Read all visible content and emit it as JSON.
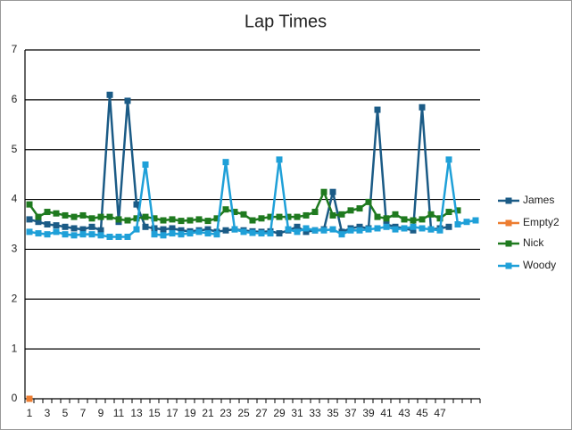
{
  "chart_data": {
    "type": "line",
    "title": "Lap Times",
    "categories": [
      "1",
      null,
      "3",
      null,
      "5",
      null,
      "7",
      null,
      "9",
      null,
      "11",
      null,
      "13",
      null,
      "15",
      null,
      "17",
      null,
      "19",
      null,
      "21",
      null,
      "23",
      null,
      "25",
      null,
      "27",
      null,
      "29",
      null,
      "31",
      null,
      "33",
      null,
      "35",
      null,
      "37",
      null,
      "39",
      null,
      "41",
      null,
      "43",
      null,
      "45",
      null,
      "47",
      null,
      null,
      null,
      null
    ],
    "series": [
      {
        "name": "James",
        "color": "#1b5b86",
        "values": [
          3.6,
          3.55,
          3.5,
          3.48,
          3.45,
          3.42,
          3.4,
          3.45,
          3.38,
          6.1,
          3.55,
          5.98,
          3.9,
          3.45,
          3.42,
          3.4,
          3.42,
          3.38,
          3.36,
          3.38,
          3.4,
          3.35,
          3.38,
          3.4,
          3.38,
          3.36,
          3.35,
          3.36,
          3.32,
          3.38,
          3.45,
          3.35,
          3.38,
          3.4,
          4.15,
          3.35,
          3.42,
          3.45,
          3.42,
          5.8,
          3.5,
          3.45,
          3.42,
          3.38,
          5.85,
          3.4,
          3.42,
          3.45,
          null,
          null,
          null
        ]
      },
      {
        "name": "Empty2",
        "color": "#ed7d31",
        "values": [
          0,
          null,
          null,
          null,
          null,
          null,
          null,
          null,
          null,
          null,
          null,
          null,
          null,
          null,
          null,
          null,
          null,
          null,
          null,
          null,
          null,
          null,
          null,
          null,
          null,
          null,
          null,
          null,
          null,
          null,
          null,
          null,
          null,
          null,
          null,
          null,
          null,
          null,
          null,
          null,
          null,
          null,
          null,
          null,
          null,
          null,
          null,
          null,
          null,
          null,
          null
        ]
      },
      {
        "name": "Nick",
        "color": "#1f7a1f",
        "values": [
          3.9,
          3.65,
          3.75,
          3.72,
          3.68,
          3.65,
          3.68,
          3.62,
          3.65,
          3.65,
          3.6,
          3.58,
          3.62,
          3.65,
          3.62,
          3.58,
          3.6,
          3.57,
          3.58,
          3.6,
          3.57,
          3.62,
          3.8,
          3.75,
          3.7,
          3.58,
          3.62,
          3.65,
          3.65,
          3.65,
          3.65,
          3.68,
          3.75,
          4.15,
          3.68,
          3.7,
          3.78,
          3.82,
          3.95,
          3.65,
          3.62,
          3.7,
          3.6,
          3.58,
          3.6,
          3.7,
          3.62,
          3.75,
          3.78,
          null,
          null
        ]
      },
      {
        "name": "Woody",
        "color": "#1fa0d8",
        "values": [
          3.35,
          3.32,
          3.3,
          3.35,
          3.3,
          3.28,
          3.3,
          3.3,
          3.28,
          3.25,
          3.25,
          3.25,
          3.4,
          4.7,
          3.3,
          3.28,
          3.32,
          3.3,
          3.32,
          3.35,
          3.32,
          3.3,
          4.75,
          3.4,
          3.35,
          3.33,
          3.32,
          3.32,
          4.8,
          3.4,
          3.35,
          3.42,
          3.38,
          3.38,
          3.4,
          3.3,
          3.38,
          3.38,
          3.4,
          3.42,
          3.45,
          3.4,
          3.42,
          3.45,
          3.42,
          3.4,
          3.38,
          4.8,
          3.5,
          3.55,
          3.58
        ]
      }
    ],
    "ylim": [
      0,
      7
    ],
    "yticks": [
      0,
      1,
      2,
      3,
      4,
      5,
      6,
      7
    ],
    "grid": true,
    "legend": "right"
  }
}
